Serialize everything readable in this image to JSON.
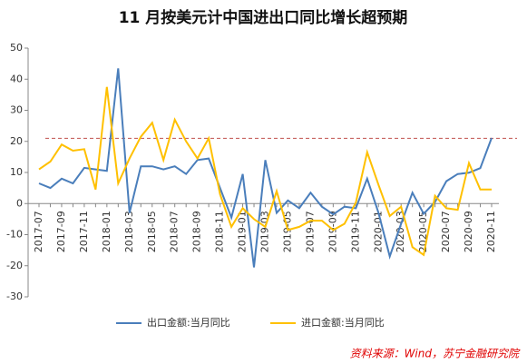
{
  "chart_data": {
    "type": "line",
    "title": "11 月按美元计中国进出口同比增长超预期",
    "source": "资料来源：Wind，苏宁金融研究院",
    "categories": [
      "2017-07",
      null,
      "2017-09",
      null,
      "2017-11",
      null,
      "2018-01",
      null,
      "2018-03",
      null,
      "2018-05",
      null,
      "2018-07",
      null,
      "2018-09",
      null,
      "2018-11",
      null,
      "2019-01",
      null,
      "2019-03",
      null,
      "2019-05",
      null,
      "2019-07",
      null,
      "2019-09",
      null,
      "2019-11",
      null,
      "2020-01",
      null,
      "2020-03",
      null,
      "2020-05",
      null,
      "2020-07",
      null,
      "2020-09",
      null,
      "2020-11"
    ],
    "series": [
      {
        "name": "出口金额:当月同比",
        "color": "#4a7ebb",
        "values": [
          6.5,
          5,
          8,
          6.5,
          11.5,
          11,
          10.5,
          43.5,
          -3,
          12,
          12,
          11,
          12,
          9.5,
          14,
          14.5,
          5,
          -4.5,
          9.5,
          -20.5,
          14,
          -3,
          1,
          -1.5,
          3.5,
          -1,
          -3.5,
          -1,
          -1.5,
          8,
          -3,
          -17,
          -6.5,
          3.5,
          -3.3,
          0.5,
          7.2,
          9.5,
          9.9,
          11.4,
          21.1
        ]
      },
      {
        "name": "进口金额:当月同比",
        "color": "#ffc000",
        "values": [
          11,
          13.5,
          19,
          17,
          17.5,
          4.5,
          37.5,
          6.5,
          14.5,
          21.5,
          26,
          14,
          27,
          20,
          14.5,
          21,
          3,
          -7.5,
          -1.5,
          -5,
          -7.5,
          4,
          -8.5,
          -7.5,
          -5.5,
          -5.5,
          -8.5,
          -6.5,
          0.3,
          16.5,
          6,
          -4,
          -1,
          -14,
          -16.5,
          2.5,
          -1.5,
          -2,
          13,
          4.5,
          4.5
        ]
      }
    ],
    "reference_line": {
      "value": 21,
      "color": "#c0504d"
    },
    "ylim": [
      -30,
      50
    ],
    "yticks": [
      -30,
      -20,
      -10,
      0,
      10,
      20,
      30,
      40,
      50
    ]
  }
}
